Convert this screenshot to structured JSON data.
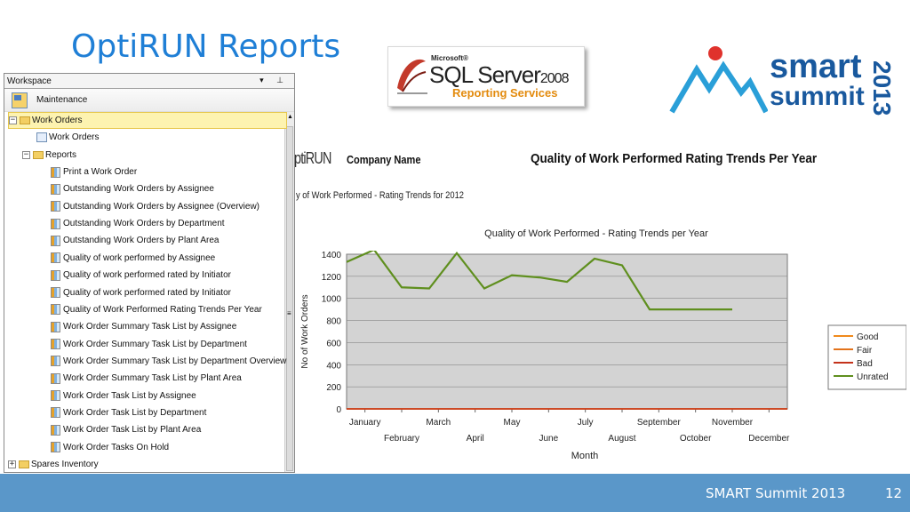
{
  "slide": {
    "title": "OptiRUN Reports",
    "footer_text": "SMART Summit 2013",
    "page_number": "12"
  },
  "logos": {
    "sql": {
      "ms": "Microsoft®",
      "name": "SQL Server",
      "version": "2008",
      "product": "Reporting Services"
    },
    "smart_summit": {
      "line1": "smart",
      "line2": "summit",
      "year": "2013"
    }
  },
  "workspace": {
    "title": "Workspace",
    "controls": "▾ ⊥",
    "maintenance_label": "Maintenance",
    "tree": [
      {
        "label": "Work Orders",
        "type": "folder",
        "expander": "−",
        "level": 0,
        "selected": true
      },
      {
        "label": "Work Orders",
        "type": "doc",
        "level": 2
      },
      {
        "label": "Reports",
        "type": "folder",
        "expander": "−",
        "level": 1
      },
      {
        "label": "Print a Work Order",
        "type": "report",
        "level": 3
      },
      {
        "label": "Outstanding Work Orders by Assignee",
        "type": "report",
        "level": 3
      },
      {
        "label": "Outstanding Work Orders by Assignee (Overview)",
        "type": "report",
        "level": 3
      },
      {
        "label": "Outstanding Work Orders by Department",
        "type": "report",
        "level": 3
      },
      {
        "label": "Outstanding Work Orders by Plant Area",
        "type": "report",
        "level": 3
      },
      {
        "label": "Quality of work performed by Assignee",
        "type": "report",
        "level": 3
      },
      {
        "label": "Quality of work performed rated by Initiator",
        "type": "report",
        "level": 3
      },
      {
        "label": "Quality of work performed rated by Initiator",
        "type": "report",
        "level": 3
      },
      {
        "label": "Quality of Work Performed Rating Trends Per Year",
        "type": "report",
        "level": 3
      },
      {
        "label": "Work Order Summary Task List by Assignee",
        "type": "report",
        "level": 3
      },
      {
        "label": "Work Order Summary Task List by Department",
        "type": "report",
        "level": 3
      },
      {
        "label": "Work Order Summary Task List by Department Overview",
        "type": "report",
        "level": 3
      },
      {
        "label": "Work Order Summary Task List by Plant Area",
        "type": "report",
        "level": 3
      },
      {
        "label": "Work Order Task List by Assignee",
        "type": "report",
        "level": 3
      },
      {
        "label": "Work Order Task List by Department",
        "type": "report",
        "level": 3
      },
      {
        "label": "Work Order Task List by Plant Area",
        "type": "report",
        "level": 3
      },
      {
        "label": "Work Order Tasks On Hold",
        "type": "report",
        "level": 3
      },
      {
        "label": "Spares Inventory",
        "type": "folder",
        "expander": "+",
        "level": 0
      }
    ]
  },
  "report": {
    "logo_text": "ptiRUN",
    "company": "Company Name",
    "title": "Quality of Work Performed Rating Trends Per Year",
    "subtitle": "y of Work Performed - Rating Trends for 2012"
  },
  "chart_data": {
    "type": "line",
    "title": "Quality of Work Performed - Rating Trends per Year",
    "xlabel": "Month",
    "ylabel": "No of Work Orders",
    "categories": [
      "January",
      "February",
      "March",
      "April",
      "May",
      "June",
      "July",
      "August",
      "September",
      "October",
      "November",
      "December"
    ],
    "ylim": [
      0,
      1400
    ],
    "yticks": [
      0,
      200,
      400,
      600,
      800,
      1000,
      1200,
      1400
    ],
    "grid": true,
    "legend_position": "right",
    "plot_background": "#d3d3d3",
    "series": [
      {
        "name": "Good",
        "color": "#f08a1c",
        "values": [
          0,
          0,
          0,
          0,
          0,
          0,
          0,
          0,
          0,
          0,
          0,
          0
        ]
      },
      {
        "name": "Fair",
        "color": "#e3731b",
        "values": [
          0,
          0,
          0,
          0,
          0,
          0,
          0,
          0,
          0,
          0,
          0,
          0
        ]
      },
      {
        "name": "Bad",
        "color": "#c4321b",
        "values": [
          0,
          0,
          0,
          0,
          0,
          0,
          0,
          0,
          0,
          0,
          0,
          0
        ]
      },
      {
        "name": "Unrated",
        "color": "#5f8f1e",
        "values": [
          1440,
          1100,
          1090,
          1410,
          1090,
          1210,
          1190,
          1150,
          1360,
          1300,
          900,
          900
        ]
      }
    ],
    "unrated_points": {
      "x_index": [
        -0.5,
        0.25,
        1.0,
        1.75,
        2.5,
        3.25,
        4.0,
        4.75,
        5.5,
        6.25,
        7.0,
        7.75,
        8.5,
        9.25,
        10.0
      ],
      "y": [
        1330,
        1440,
        1100,
        1090,
        1410,
        1090,
        1210,
        1190,
        1150,
        1360,
        1300,
        900,
        900,
        900,
        900
      ]
    }
  }
}
